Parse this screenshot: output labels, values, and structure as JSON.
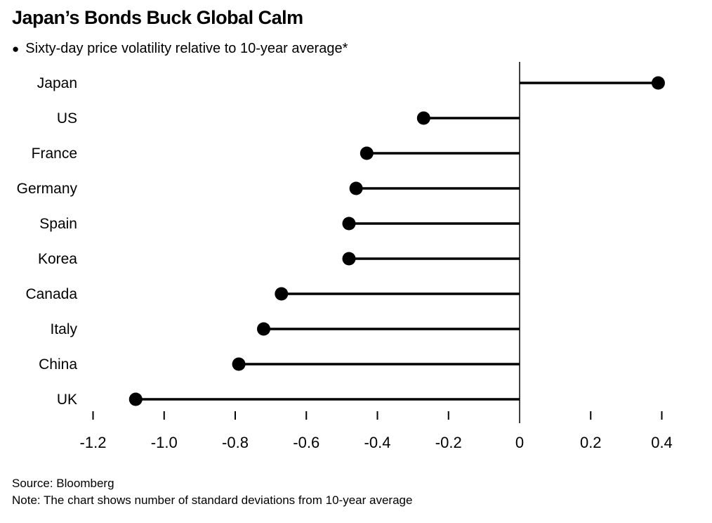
{
  "header": {
    "title": "Japan’s Bonds Buck Global Calm",
    "legend_marker": "●",
    "subtitle": "Sixty-day price volatility relative to 10-year average*"
  },
  "footer": {
    "source": "Source: Bloomberg",
    "note": "Note: The chart shows number of standard deviations from 10-year average"
  },
  "chart_data": {
    "type": "bar",
    "subtype": "horizontal-lollipop",
    "title": "Japan’s Bonds Buck Global Calm",
    "subtitle": "Sixty-day price volatility relative to 10-year average*",
    "categories": [
      "Japan",
      "US",
      "France",
      "Germany",
      "Spain",
      "Korea",
      "Canada",
      "Italy",
      "China",
      "UK"
    ],
    "values": [
      0.39,
      -0.27,
      -0.43,
      -0.46,
      -0.48,
      -0.48,
      -0.67,
      -0.72,
      -0.79,
      -1.08
    ],
    "xlabel": "",
    "ylabel": "",
    "xlim": [
      -1.3,
      0.46
    ],
    "xticks": [
      -1.2,
      -1.0,
      -0.8,
      -0.6,
      -0.4,
      -0.2,
      0,
      0.2,
      0.4
    ],
    "xtick_labels": [
      "-1.2",
      "-1.0",
      "-0.8",
      "-0.6",
      "-0.4",
      "-0.2",
      "0",
      "0.2",
      "0.4"
    ],
    "baseline": 0,
    "grid": false,
    "legend_position": "top-left",
    "colors": {
      "dot": "#000000",
      "stick": "#000000",
      "axis": "#000000",
      "tick": "#000000",
      "background": "#ffffff"
    }
  }
}
